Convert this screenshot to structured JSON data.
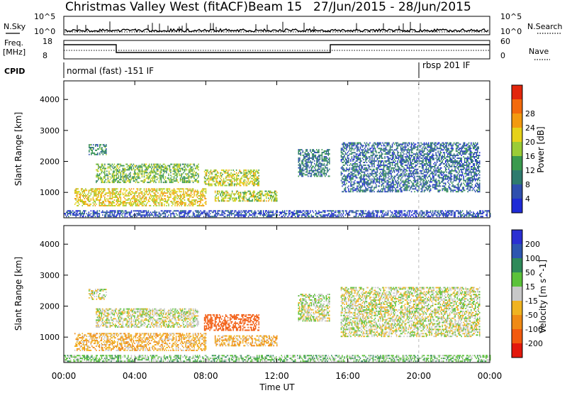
{
  "header": {
    "station": "Christmas Valley West (fitACF)",
    "beam": "Beam 15",
    "dates": "27/Jun/2015 - 28/Jun/2015"
  },
  "top_panels": {
    "nsky_label": "N.Sky",
    "nsearch_label": "N.Search",
    "nsky_ticks": [
      "10^5",
      "10^0"
    ],
    "nsearch_ticks": [
      "10^5",
      "10^0"
    ],
    "freq_label": "Freq.",
    "freq_unit": "[MHz]",
    "freq_ticks": [
      "18",
      "8"
    ],
    "nave_label": "Nave",
    "nave_ticks": [
      "60",
      "0"
    ],
    "cpid_label": "CPID",
    "cpid_entries": [
      {
        "text": "normal (fast) -151 IF",
        "start_hour": 0
      },
      {
        "text": "rbsp 201 IF",
        "start_hour": 20
      }
    ]
  },
  "chart_data": [
    {
      "type": "heatmap",
      "title": "",
      "xlabel": "Time UT",
      "ylabel": "Slant Range [km]",
      "xlim": [
        0,
        24
      ],
      "ylim": [
        180,
        4600
      ],
      "x_ticks": [
        "00:00",
        "04:00",
        "08:00",
        "12:00",
        "16:00",
        "20:00",
        "00:00"
      ],
      "y_ticks": [
        1000,
        2000,
        3000,
        4000
      ],
      "colorbar": {
        "label": "Power [dB]",
        "ticks": [
          4,
          8,
          12,
          16,
          20,
          24,
          28
        ],
        "colors": [
          "#1f2bd6",
          "#2f4fae",
          "#2e7b6e",
          "#3a9a4e",
          "#9bcc36",
          "#e6d21a",
          "#f39a10",
          "#f36a0c",
          "#e2260c"
        ]
      },
      "echo_regions": [
        {
          "t0": 0.6,
          "t1": 8.0,
          "r0": 550,
          "r1": 1100,
          "mean": 22
        },
        {
          "t0": 1.8,
          "t1": 7.6,
          "r0": 1300,
          "r1": 1900,
          "mean": 16
        },
        {
          "t0": 7.9,
          "t1": 11.0,
          "r0": 1200,
          "r1": 1700,
          "mean": 20
        },
        {
          "t0": 8.5,
          "t1": 12.0,
          "r0": 700,
          "r1": 1050,
          "mean": 19
        },
        {
          "t0": 1.4,
          "t1": 2.4,
          "r0": 2200,
          "r1": 2550,
          "mean": 11
        },
        {
          "t0": 13.2,
          "t1": 15.0,
          "r0": 1500,
          "r1": 2400,
          "mean": 10
        },
        {
          "t0": 15.6,
          "t1": 23.4,
          "r0": 1000,
          "r1": 2600,
          "mean": 8
        },
        {
          "t0": 0.0,
          "t1": 24.0,
          "r0": 200,
          "r1": 400,
          "mean": 5
        }
      ]
    },
    {
      "type": "heatmap",
      "title": "",
      "xlabel": "Time UT",
      "ylabel": "Slant Range [km]",
      "xlim": [
        0,
        24
      ],
      "ylim": [
        180,
        4600
      ],
      "x_ticks": [
        "00:00",
        "04:00",
        "08:00",
        "12:00",
        "16:00",
        "20:00",
        "00:00"
      ],
      "y_ticks": [
        1000,
        2000,
        3000,
        4000
      ],
      "colorbar": {
        "label": "Velocity [m s^-1]",
        "ticks": [
          200,
          100,
          50,
          15,
          -15,
          -50,
          -100,
          -200
        ],
        "colors": [
          "#2b2fd2",
          "#2e56b0",
          "#2f8a5a",
          "#5cc23a",
          "#c8c8c8",
          "#f0b320",
          "#f08a14",
          "#f25a0e",
          "#e3180c"
        ]
      },
      "echo_regions": [
        {
          "t0": 0.6,
          "t1": 8.0,
          "r0": 550,
          "r1": 1100,
          "mean": -40
        },
        {
          "t0": 1.8,
          "t1": 7.6,
          "r0": 1300,
          "r1": 1900,
          "mean": 0
        },
        {
          "t0": 7.9,
          "t1": 11.0,
          "r0": 1200,
          "r1": 1700,
          "mean": -160
        },
        {
          "t0": 8.5,
          "t1": 12.0,
          "r0": 700,
          "r1": 1050,
          "mean": -40
        },
        {
          "t0": 1.4,
          "t1": 2.4,
          "r0": 2200,
          "r1": 2550,
          "mean": 0
        },
        {
          "t0": 13.2,
          "t1": 15.0,
          "r0": 1500,
          "r1": 2400,
          "mean": 5
        },
        {
          "t0": 15.6,
          "t1": 23.4,
          "r0": 1000,
          "r1": 2600,
          "mean": 0
        },
        {
          "t0": 0.0,
          "t1": 24.0,
          "r0": 200,
          "r1": 400,
          "mean": 30
        }
      ]
    }
  ]
}
